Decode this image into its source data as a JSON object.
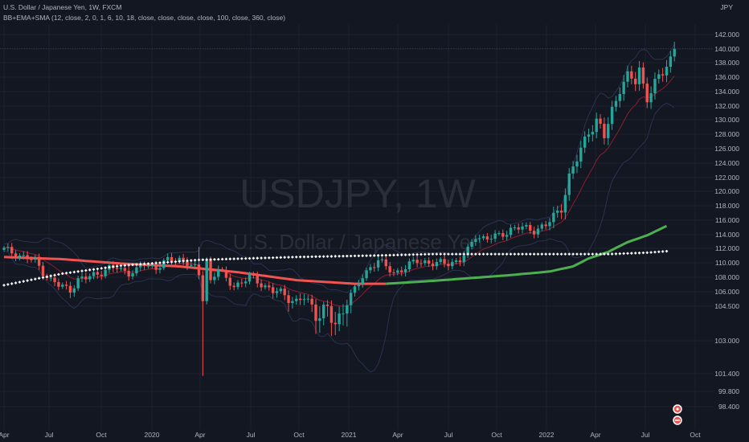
{
  "header": {
    "symbol_line": "U.S. Dollar / Japanese Yen, 1W, FXCM",
    "indicator_line": "BB+EMA+SMA (12, close, 2, 0, 1, 6, 10, 18, close, close, close, close, 100, close, 360, close)",
    "currency": "JPY"
  },
  "watermark": {
    "ticker": "USDJPY, 1W",
    "name": "U.S. Dollar / Japanese Yen"
  },
  "colors": {
    "background": "#131722",
    "grid": "#1e222d",
    "up": "#26a69a",
    "down": "#ef5350",
    "sma_red": "#f05350",
    "sma_green": "#4caf50",
    "sma360": "#ffffff",
    "bollinger": "#2a3250",
    "ema": "#8a1e2e",
    "axis_text": "#b2b5be"
  },
  "chart_data": {
    "type": "candlestick",
    "title": "U.S. Dollar / Japanese Yen, 1W, FXCM",
    "y_ticks": [
      "142.000",
      "140.000",
      "138.000",
      "136.000",
      "134.000",
      "132.000",
      "130.000",
      "128.000",
      "126.000",
      "124.000",
      "122.000",
      "120.000",
      "118.000",
      "116.000",
      "114.000",
      "112.000",
      "110.000",
      "108.000",
      "106.000",
      "104.500",
      "103.000",
      "101.400",
      "99.800",
      "98.400"
    ],
    "x_ticks": [
      "Apr",
      "Jul",
      "Oct",
      "2020",
      "Apr",
      "Jul",
      "Oct",
      "2021",
      "Apr",
      "Jul",
      "Oct",
      "2022",
      "Apr",
      "Jul",
      "Oct"
    ],
    "ylim": [
      98.0,
      143.0
    ],
    "price_path": [
      [
        0,
        111.8
      ],
      [
        3,
        111.3
      ],
      [
        5,
        110.8
      ],
      [
        8,
        110.2
      ],
      [
        10,
        108.8
      ],
      [
        12,
        107.6
      ],
      [
        14,
        106.8
      ],
      [
        17,
        106.4
      ],
      [
        19,
        107.6
      ],
      [
        21,
        107.8
      ],
      [
        23,
        108.4
      ],
      [
        26,
        109.0
      ],
      [
        29,
        109.3
      ],
      [
        32,
        108.7
      ],
      [
        34,
        108.8
      ],
      [
        36,
        109.8
      ],
      [
        39,
        109.4
      ],
      [
        42,
        110.2
      ],
      [
        45,
        110.6
      ],
      [
        47,
        110.0
      ],
      [
        49,
        109.1
      ],
      [
        50,
        108.2
      ],
      [
        51,
        105.5
      ],
      [
        52,
        110.5
      ],
      [
        53,
        107.5
      ],
      [
        55,
        109.2
      ],
      [
        57,
        107.6
      ],
      [
        59,
        107.0
      ],
      [
        61,
        107.2
      ],
      [
        63,
        108.0
      ],
      [
        66,
        107.2
      ],
      [
        69,
        106.0
      ],
      [
        71,
        105.9
      ],
      [
        73,
        105.5
      ],
      [
        75,
        104.9
      ],
      [
        77,
        105.3
      ],
      [
        79,
        104.5
      ],
      [
        81,
        104.4
      ],
      [
        83,
        104.2
      ],
      [
        85,
        103.6
      ],
      [
        86,
        103.9
      ],
      [
        88,
        105.2
      ],
      [
        90,
        106.2
      ],
      [
        92,
        108.0
      ],
      [
        94,
        109.5
      ],
      [
        96,
        110.4
      ],
      [
        98,
        109.3
      ],
      [
        100,
        108.6
      ],
      [
        103,
        109.4
      ],
      [
        106,
        110.2
      ],
      [
        108,
        110.2
      ],
      [
        111,
        109.8
      ],
      [
        114,
        110.0
      ],
      [
        117,
        110.4
      ],
      [
        119,
        111.6
      ],
      [
        121,
        113.9
      ],
      [
        124,
        113.4
      ],
      [
        127,
        113.8
      ],
      [
        130,
        114.8
      ],
      [
        133,
        114.9
      ],
      [
        136,
        114.7
      ],
      [
        139,
        115.2
      ],
      [
        141,
        116.3
      ],
      [
        143,
        118.2
      ],
      [
        145,
        121.8
      ],
      [
        148,
        125.8
      ],
      [
        150,
        128.8
      ],
      [
        152,
        129.6
      ],
      [
        154,
        127.6
      ],
      [
        156,
        131.5
      ],
      [
        158,
        134.7
      ],
      [
        160,
        135.7
      ],
      [
        162,
        135.5
      ],
      [
        163,
        137.2
      ],
      [
        164,
        135.1
      ],
      [
        165,
        133.4
      ],
      [
        167,
        134.7
      ],
      [
        169,
        136.8
      ],
      [
        171,
        138.7
      ],
      [
        172,
        140.5
      ]
    ],
    "sma_series": [
      [
        0,
        110.8
      ],
      [
        15,
        110.5
      ],
      [
        30,
        109.9
      ],
      [
        45,
        109.5
      ],
      [
        60,
        108.7
      ],
      [
        75,
        107.6
      ],
      [
        90,
        107.1
      ],
      [
        98,
        107.1
      ],
      [
        110,
        107.5
      ],
      [
        120,
        107.9
      ],
      [
        130,
        108.3
      ],
      [
        140,
        108.8
      ],
      [
        146,
        109.5
      ],
      [
        150,
        110.6
      ],
      [
        155,
        111.5
      ],
      [
        160,
        112.9
      ],
      [
        165,
        113.9
      ],
      [
        170,
        115.2
      ]
    ],
    "sma_color_switch_at": 98,
    "sma360_series": [
      [
        0,
        106.9
      ],
      [
        15,
        108.5
      ],
      [
        30,
        109.6
      ],
      [
        50,
        110.4
      ],
      [
        75,
        110.8
      ],
      [
        95,
        111.0
      ],
      [
        110,
        111.2
      ],
      [
        125,
        111.2
      ],
      [
        140,
        111.2
      ],
      [
        155,
        111.2
      ],
      [
        165,
        111.4
      ],
      [
        170,
        111.6
      ]
    ],
    "weeks_count": 173
  }
}
